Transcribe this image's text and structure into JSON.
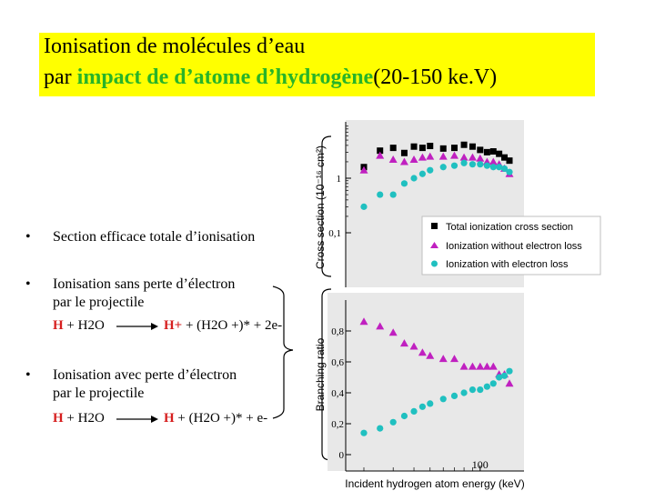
{
  "title": {
    "line1": "Ionisation de molécules d’eau",
    "line2_prefix": "par ",
    "line2_highlight": "impact de d’atome d’hydrogène",
    "line2_suffix": "(20-150 ke.V)"
  },
  "bullets": [
    {
      "mark": "•",
      "text": "Section efficace totale d’ionisation"
    },
    {
      "mark": "•",
      "line1": "Ionisation sans perte d’électron",
      "line2": "par le projectile",
      "reaction": {
        "left_H": "H",
        "left_rest": " + H2O",
        "right_H": "H+",
        "right_rest": " + (H2O +)* + 2e-"
      }
    },
    {
      "mark": "•",
      "line1": "Ionisation avec perte d’électron",
      "line2": "par le projectile",
      "reaction": {
        "left_H": "H",
        "left_rest": " + H2O",
        "right_H": "H",
        "right_rest": " + (H2O +)* + e-"
      }
    }
  ],
  "colors": {
    "title_bg": "#ffff00",
    "highlight": "#28b428",
    "hydrogen": "#d61e1e",
    "total": "#000000",
    "without": "#c020c0",
    "with": "#20c0c0",
    "legend_bg": "#ffffff",
    "panel_bg": "#e8e8e8"
  },
  "chart_data": [
    {
      "type": "scatter",
      "ylabel": "Cross section (10⁻¹⁶ cm²)",
      "yscale": "log",
      "yticks": [
        {
          "value": 1,
          "label": "1"
        },
        {
          "value": 0.1,
          "label": "0,1"
        }
      ],
      "legend": [
        "Total ionization cross section",
        "Ionization without electron loss",
        "Ionization with electron loss"
      ],
      "legend_position": "bottom-right",
      "series": [
        {
          "name": "Total ionization cross section",
          "marker": "square",
          "x": [
            20,
            25,
            30,
            35,
            40,
            45,
            50,
            60,
            70,
            80,
            90,
            100,
            110,
            120,
            130,
            140,
            150
          ],
          "y": [
            1.6,
            3.2,
            3.6,
            2.9,
            3.8,
            3.6,
            3.9,
            3.5,
            3.6,
            4.1,
            3.8,
            3.3,
            3.0,
            3.1,
            2.8,
            2.4,
            2.1
          ]
        },
        {
          "name": "Ionization without electron loss",
          "marker": "triangle",
          "x": [
            20,
            25,
            30,
            35,
            40,
            45,
            50,
            60,
            70,
            80,
            90,
            100,
            110,
            120,
            130,
            140,
            150
          ],
          "y": [
            1.4,
            2.6,
            2.2,
            2.0,
            2.2,
            2.4,
            2.5,
            2.5,
            2.6,
            2.4,
            2.4,
            2.3,
            2.0,
            2.0,
            1.8,
            1.5,
            1.2
          ]
        },
        {
          "name": "Ionization with electron loss",
          "marker": "circle",
          "x": [
            20,
            25,
            30,
            35,
            40,
            45,
            50,
            60,
            70,
            80,
            90,
            100,
            110,
            120,
            130,
            140,
            150
          ],
          "y": [
            0.3,
            0.5,
            0.5,
            0.8,
            1.0,
            1.2,
            1.4,
            1.6,
            1.7,
            1.9,
            1.8,
            1.8,
            1.7,
            1.6,
            1.6,
            1.5,
            1.3
          ]
        }
      ]
    },
    {
      "type": "scatter",
      "xlabel": "Incident hydrogen atom energy (keV)",
      "ylabel": "Branching ratio",
      "xscale": "log",
      "xticks": [
        {
          "value": 100,
          "label": "100"
        }
      ],
      "yrange": [
        0,
        1
      ],
      "yticks": [
        {
          "value": 0,
          "label": "0"
        },
        {
          "value": 0.2,
          "label": "0,2"
        },
        {
          "value": 0.4,
          "label": "0,4"
        },
        {
          "value": 0.6,
          "label": "0,6"
        },
        {
          "value": 0.8,
          "label": "0,8"
        }
      ],
      "series": [
        {
          "marker": "triangle",
          "x": [
            20,
            25,
            30,
            35,
            40,
            45,
            50,
            60,
            70,
            80,
            90,
            100,
            110,
            120,
            130,
            140,
            150
          ],
          "y": [
            0.86,
            0.83,
            0.79,
            0.72,
            0.7,
            0.66,
            0.64,
            0.62,
            0.62,
            0.57,
            0.57,
            0.57,
            0.57,
            0.57,
            0.52,
            0.52,
            0.46
          ]
        },
        {
          "marker": "circle",
          "x": [
            20,
            25,
            30,
            35,
            40,
            45,
            50,
            60,
            70,
            80,
            90,
            100,
            110,
            120,
            130,
            140,
            150
          ],
          "y": [
            0.14,
            0.17,
            0.21,
            0.25,
            0.28,
            0.31,
            0.33,
            0.36,
            0.38,
            0.4,
            0.42,
            0.42,
            0.44,
            0.46,
            0.5,
            0.51,
            0.54
          ]
        }
      ]
    }
  ]
}
